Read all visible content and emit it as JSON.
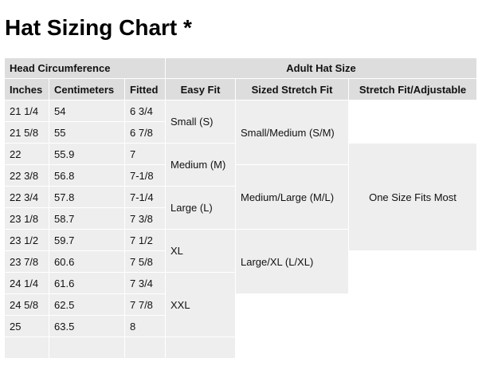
{
  "title": "Hat Sizing Chart *",
  "table": {
    "group_headers": {
      "head": "Head Circumference",
      "adult": "Adult Hat Size"
    },
    "columns": [
      "Inches",
      "Centimeters",
      "Fitted",
      "Easy Fit",
      "Sized Stretch Fit",
      "Stretch Fit/Adjustable"
    ],
    "rows": [
      [
        "21 1/4",
        "54",
        "6 3/4"
      ],
      [
        "21 5/8",
        "55",
        "6 7/8"
      ],
      [
        "22",
        "55.9",
        "7"
      ],
      [
        "22 3/8",
        "56.8",
        "7-1/8"
      ],
      [
        "22 3/4",
        "57.8",
        "7-1/4"
      ],
      [
        "23 1/8",
        "58.7",
        "7 3/8"
      ],
      [
        "23 1/2",
        "59.7",
        "7 1/2"
      ],
      [
        "23 7/8",
        "60.6",
        "7 5/8"
      ],
      [
        "24 1/4",
        "61.6",
        "7 3/4"
      ],
      [
        "24 5/8",
        "62.5",
        "7 7/8"
      ],
      [
        "25",
        "63.5",
        "8"
      ],
      [
        "",
        "",
        ""
      ]
    ],
    "easy_fit": [
      "Small (S)",
      "Medium (M)",
      "Large (L)",
      "XL",
      "XXL"
    ],
    "sized_stretch": [
      "Small/Medium (S/M)",
      "Medium/Large (M/L)",
      "Large/XL (L/XL)"
    ],
    "stretch_adjustable": "One Size Fits Most"
  },
  "colors": {
    "header_bg": "#dddddd",
    "cell_bg": "#eeeeee"
  }
}
